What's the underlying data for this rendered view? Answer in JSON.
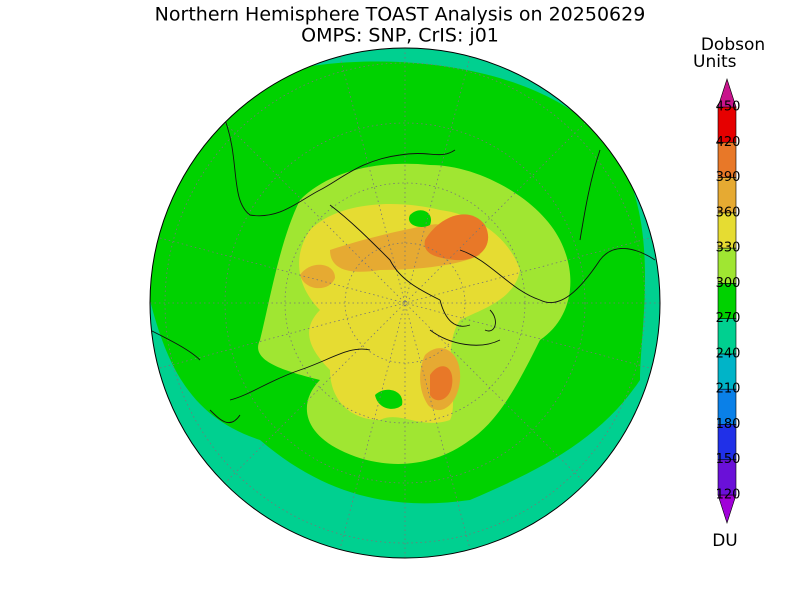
{
  "map": {
    "title": "Northern Hemisphere TOAST Analysis on 20250629",
    "subtitle": "OMPS: SNP, CrIS: j01"
  },
  "colorbar": {
    "title_lines": [
      "Dobson",
      "Units"
    ],
    "unit": "DU",
    "ticks": [
      120,
      150,
      180,
      210,
      240,
      270,
      300,
      330,
      360,
      390,
      420,
      450
    ],
    "colors": [
      "#a000d8",
      "#6a10d8",
      "#2030e8",
      "#0a80e8",
      "#00b4c8",
      "#00d090",
      "#00d200",
      "#a0e632",
      "#e6dc32",
      "#e6aa32",
      "#e87828",
      "#e60000",
      "#c8148c"
    ]
  }
}
